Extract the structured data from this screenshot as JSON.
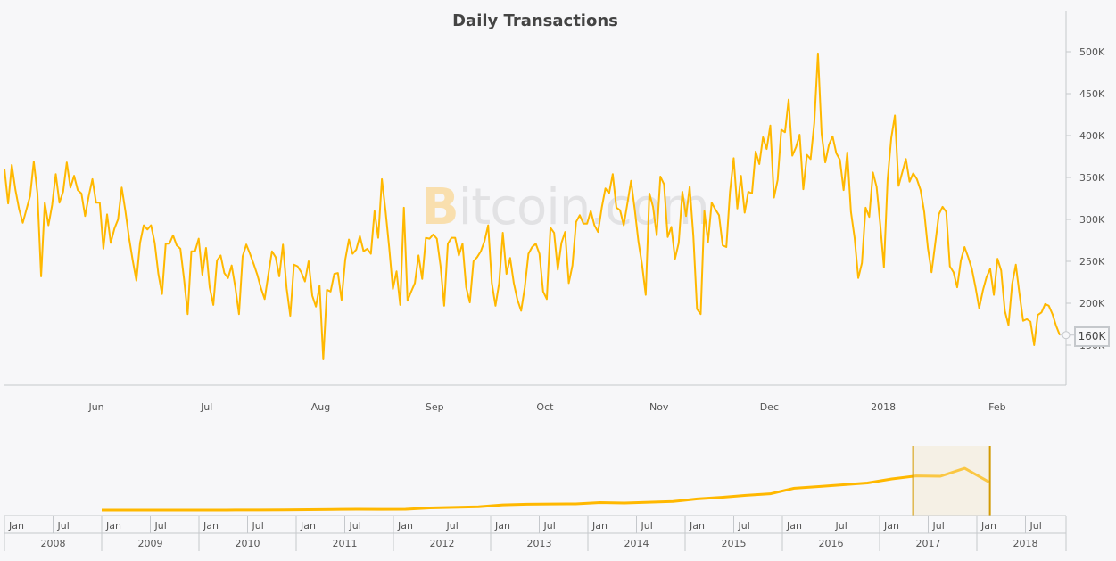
{
  "chart_data": {
    "type": "line",
    "title": "Daily Transactions",
    "watermark": "Bitcoin.com",
    "color": "#ffb800",
    "x_range": [
      "2017-05-07",
      "2018-02-18"
    ],
    "x_interval": "daily",
    "x_ticks": [
      "Jun",
      "Jul",
      "Aug",
      "Sep",
      "Oct",
      "Nov",
      "Dec",
      "2018",
      "Feb"
    ],
    "y_ticks": [
      "150K",
      "200K",
      "250K",
      "300K",
      "350K",
      "400K",
      "450K",
      "500K"
    ],
    "ylim": [
      110000,
      530000
    ],
    "y_axis_position": "right",
    "grid": false,
    "tooltip": {
      "value": "160K"
    },
    "series": [
      {
        "values_k": [
          360,
          319,
          365,
          335,
          312,
          296,
          312,
          328,
          369,
          331,
          232,
          320,
          293,
          317,
          354,
          320,
          333,
          368,
          338,
          352,
          335,
          331,
          304,
          328,
          348,
          320,
          320,
          265,
          306,
          272,
          289,
          300,
          338,
          310,
          278,
          251,
          227,
          272,
          293,
          288,
          293,
          272,
          235,
          211,
          271,
          271,
          281,
          269,
          265,
          229,
          187,
          262,
          262,
          277,
          234,
          266,
          219,
          198,
          251,
          257,
          236,
          230,
          245,
          219,
          187,
          256,
          270,
          259,
          247,
          234,
          218,
          205,
          234,
          262,
          255,
          232,
          270,
          218,
          185,
          246,
          244,
          237,
          226,
          250,
          209,
          196,
          221,
          133,
          216,
          214,
          235,
          236,
          204,
          252,
          276,
          259,
          264,
          280,
          262,
          265,
          259,
          310,
          278,
          348,
          310,
          266,
          217,
          238,
          198,
          314,
          203,
          214,
          224,
          257,
          229,
          278,
          277,
          282,
          277,
          245,
          197,
          271,
          278,
          278,
          257,
          271,
          219,
          201,
          250,
          255,
          262,
          274,
          293,
          224,
          197,
          224,
          284,
          235,
          254,
          224,
          204,
          191,
          219,
          259,
          267,
          271,
          259,
          214,
          205,
          290,
          284,
          240,
          272,
          285,
          224,
          245,
          297,
          305,
          295,
          295,
          310,
          293,
          285,
          314,
          337,
          331,
          354,
          314,
          311,
          293,
          319,
          346,
          312,
          274,
          246,
          210,
          331,
          315,
          281,
          351,
          342,
          279,
          291,
          253,
          272,
          333,
          304,
          339,
          280,
          193,
          187,
          310,
          273,
          320,
          312,
          305,
          269,
          267,
          333,
          373,
          313,
          352,
          308,
          333,
          331,
          381,
          366,
          398,
          384,
          412,
          326,
          347,
          407,
          404,
          443,
          376,
          386,
          401,
          336,
          377,
          372,
          415,
          498,
          402,
          368,
          389,
          399,
          379,
          371,
          335,
          380,
          309,
          278,
          230,
          248,
          314,
          303,
          356,
          339,
          294,
          243,
          347,
          397,
          424,
          340,
          356,
          372,
          345,
          355,
          348,
          335,
          309,
          266,
          237,
          271,
          306,
          315,
          309,
          244,
          237,
          219,
          251,
          267,
          255,
          241,
          219,
          194,
          215,
          231,
          241,
          210,
          253,
          239,
          191,
          174,
          223,
          246,
          211,
          179,
          181,
          178,
          150,
          186,
          189,
          199,
          197,
          187,
          173,
          162
        ]
      }
    ]
  },
  "navigator": {
    "years": [
      "2008",
      "2009",
      "2010",
      "2011",
      "2012",
      "2013",
      "2014",
      "2015",
      "2016",
      "2017",
      "2018"
    ],
    "half_labels": [
      "Jan",
      "Jul"
    ],
    "series_quarterly_k": [
      0.1,
      0.2,
      0.3,
      0.3,
      0.3,
      0.5,
      1,
      2,
      4,
      6,
      8,
      7,
      8,
      20,
      25,
      30,
      45,
      50,
      55,
      55,
      65,
      65,
      70,
      75,
      95,
      115,
      130,
      140,
      200,
      210,
      220,
      230,
      280,
      300,
      290,
      380,
      250
    ],
    "series_start_year": 2009,
    "selection_color": "#d39a00"
  }
}
